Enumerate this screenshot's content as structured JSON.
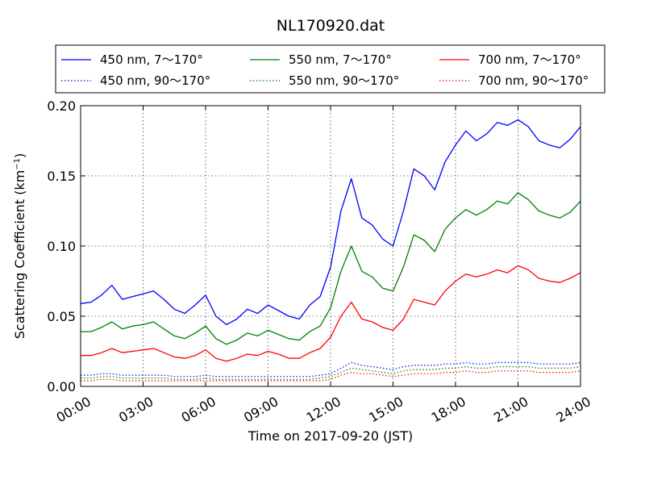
{
  "chart_data": {
    "type": "line",
    "title": "NL170920.dat",
    "xlabel": "Time on 2017-09-20 (JST)",
    "ylabel_main": "Scattering Coefficient (km",
    "ylabel_sup": "−1",
    "ylabel_close": ")",
    "xlim": [
      0,
      24
    ],
    "ylim": [
      0,
      0.2
    ],
    "xticks": [
      0,
      3,
      6,
      9,
      12,
      15,
      18,
      21,
      24
    ],
    "xtick_labels": [
      "00:00",
      "03:00",
      "06:00",
      "09:00",
      "12:00",
      "15:00",
      "18:00",
      "21:00",
      "24:00"
    ],
    "yticks": [
      0,
      0.05,
      0.1,
      0.15,
      0.2
    ],
    "ytick_labels": [
      "0.00",
      "0.05",
      "0.10",
      "0.15",
      "0.20"
    ],
    "grid": true,
    "legend_placement": "top, above plot, 3 columns",
    "x": [
      0,
      0.5,
      1,
      1.5,
      2,
      2.5,
      3,
      3.5,
      4,
      4.5,
      5,
      5.5,
      6,
      6.5,
      7,
      7.5,
      8,
      8.5,
      9,
      9.5,
      10,
      10.5,
      11,
      11.5,
      12,
      12.5,
      13,
      13.5,
      14,
      14.5,
      15,
      15.5,
      16,
      16.5,
      17,
      17.5,
      18,
      18.5,
      19,
      19.5,
      20,
      20.5,
      21,
      21.5,
      22,
      22.5,
      23,
      23.5,
      24
    ],
    "series": [
      {
        "name": "450 nm, 7～170°",
        "color": "#0000ff",
        "style": "solid",
        "values": [
          0.059,
          0.06,
          0.065,
          0.072,
          0.062,
          0.064,
          0.066,
          0.068,
          0.062,
          0.055,
          0.052,
          0.058,
          0.065,
          0.05,
          0.044,
          0.048,
          0.055,
          0.052,
          0.058,
          0.054,
          0.05,
          0.048,
          0.058,
          0.064,
          0.085,
          0.125,
          0.148,
          0.12,
          0.115,
          0.105,
          0.1,
          0.125,
          0.155,
          0.15,
          0.14,
          0.16,
          0.172,
          0.182,
          0.175,
          0.18,
          0.188,
          0.186,
          0.19,
          0.185,
          0.175,
          0.172,
          0.17,
          0.176,
          0.185
        ]
      },
      {
        "name": "450 nm, 90～170°",
        "color": "#0000ff",
        "style": "dotted",
        "values": [
          0.008,
          0.008,
          0.009,
          0.009,
          0.008,
          0.008,
          0.008,
          0.008,
          0.008,
          0.007,
          0.007,
          0.007,
          0.008,
          0.007,
          0.007,
          0.007,
          0.007,
          0.007,
          0.007,
          0.007,
          0.007,
          0.007,
          0.007,
          0.008,
          0.009,
          0.013,
          0.017,
          0.015,
          0.014,
          0.013,
          0.012,
          0.014,
          0.015,
          0.015,
          0.015,
          0.016,
          0.016,
          0.017,
          0.016,
          0.016,
          0.017,
          0.017,
          0.017,
          0.017,
          0.016,
          0.016,
          0.016,
          0.016,
          0.017
        ]
      },
      {
        "name": "550 nm, 7～170°",
        "color": "#008000",
        "style": "solid",
        "values": [
          0.039,
          0.039,
          0.042,
          0.046,
          0.041,
          0.043,
          0.044,
          0.046,
          0.041,
          0.036,
          0.034,
          0.038,
          0.043,
          0.034,
          0.03,
          0.033,
          0.038,
          0.036,
          0.04,
          0.037,
          0.034,
          0.033,
          0.039,
          0.043,
          0.056,
          0.082,
          0.1,
          0.082,
          0.078,
          0.07,
          0.068,
          0.085,
          0.108,
          0.104,
          0.096,
          0.112,
          0.12,
          0.126,
          0.122,
          0.126,
          0.132,
          0.13,
          0.138,
          0.133,
          0.125,
          0.122,
          0.12,
          0.124,
          0.132
        ]
      },
      {
        "name": "550 nm, 90～170°",
        "color": "#008000",
        "style": "dotted",
        "values": [
          0.006,
          0.006,
          0.007,
          0.007,
          0.006,
          0.006,
          0.006,
          0.006,
          0.006,
          0.005,
          0.005,
          0.005,
          0.006,
          0.005,
          0.005,
          0.005,
          0.005,
          0.005,
          0.005,
          0.005,
          0.005,
          0.005,
          0.005,
          0.006,
          0.007,
          0.01,
          0.013,
          0.012,
          0.011,
          0.01,
          0.009,
          0.011,
          0.012,
          0.012,
          0.012,
          0.013,
          0.013,
          0.014,
          0.013,
          0.013,
          0.014,
          0.014,
          0.014,
          0.014,
          0.013,
          0.013,
          0.013,
          0.013,
          0.014
        ]
      },
      {
        "name": "700 nm, 7～170°",
        "color": "#ff0000",
        "style": "solid",
        "values": [
          0.022,
          0.022,
          0.024,
          0.027,
          0.024,
          0.025,
          0.026,
          0.027,
          0.024,
          0.021,
          0.02,
          0.022,
          0.026,
          0.02,
          0.018,
          0.02,
          0.023,
          0.022,
          0.025,
          0.023,
          0.02,
          0.02,
          0.024,
          0.027,
          0.035,
          0.05,
          0.06,
          0.048,
          0.046,
          0.042,
          0.04,
          0.048,
          0.062,
          0.06,
          0.058,
          0.068,
          0.075,
          0.08,
          0.078,
          0.08,
          0.083,
          0.081,
          0.086,
          0.083,
          0.077,
          0.075,
          0.074,
          0.077,
          0.081
        ]
      },
      {
        "name": "700 nm, 90～170°",
        "color": "#ff0000",
        "style": "dotted",
        "values": [
          0.004,
          0.004,
          0.005,
          0.005,
          0.004,
          0.004,
          0.004,
          0.004,
          0.004,
          0.004,
          0.004,
          0.004,
          0.004,
          0.004,
          0.004,
          0.004,
          0.004,
          0.004,
          0.004,
          0.004,
          0.004,
          0.004,
          0.004,
          0.004,
          0.005,
          0.008,
          0.01,
          0.009,
          0.009,
          0.008,
          0.007,
          0.008,
          0.009,
          0.009,
          0.009,
          0.01,
          0.01,
          0.011,
          0.01,
          0.01,
          0.011,
          0.011,
          0.011,
          0.011,
          0.01,
          0.01,
          0.01,
          0.01,
          0.011
        ]
      }
    ]
  }
}
